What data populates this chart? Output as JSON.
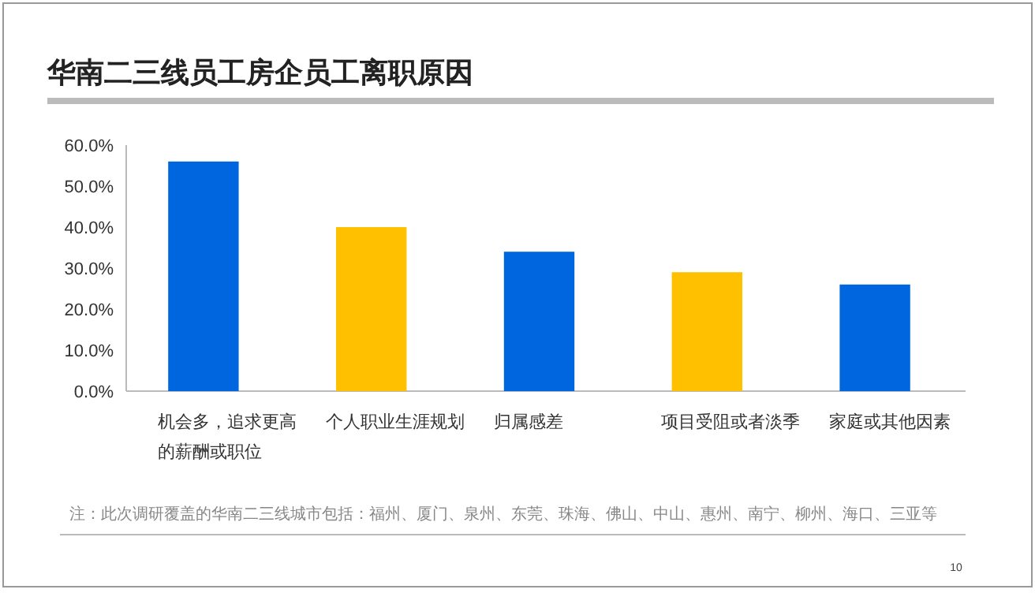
{
  "chart_data": {
    "type": "bar",
    "title": "华南二三线员工房企员工离职原因",
    "categories": [
      "机会多，追求更高的薪酬或职位",
      "个人职业生涯规划",
      "归属感差",
      "项目受阻或者淡季",
      "家庭或其他因素"
    ],
    "values": [
      56,
      40,
      34,
      29,
      26
    ],
    "colors": [
      "#0066e0",
      "#ffc000",
      "#0066e0",
      "#ffc000",
      "#0066e0"
    ],
    "ylim": [
      0,
      60
    ],
    "yticks": [
      {
        "value": 0,
        "label": "0.0%"
      },
      {
        "value": 10,
        "label": "10.0%"
      },
      {
        "value": 20,
        "label": "20.0%"
      },
      {
        "value": 30,
        "label": "30.0%"
      },
      {
        "value": 40,
        "label": "40.0%"
      },
      {
        "value": 50,
        "label": "50.0%"
      },
      {
        "value": 60,
        "label": "60.0%"
      }
    ],
    "grid": false,
    "annotations": [
      "注：此次调研覆盖的华南二三线城市包括：福州、厦门、泉州、东莞、珠海、佛山、中山、惠州、南宁、柳州、海口、三亚等",
      "10"
    ]
  }
}
